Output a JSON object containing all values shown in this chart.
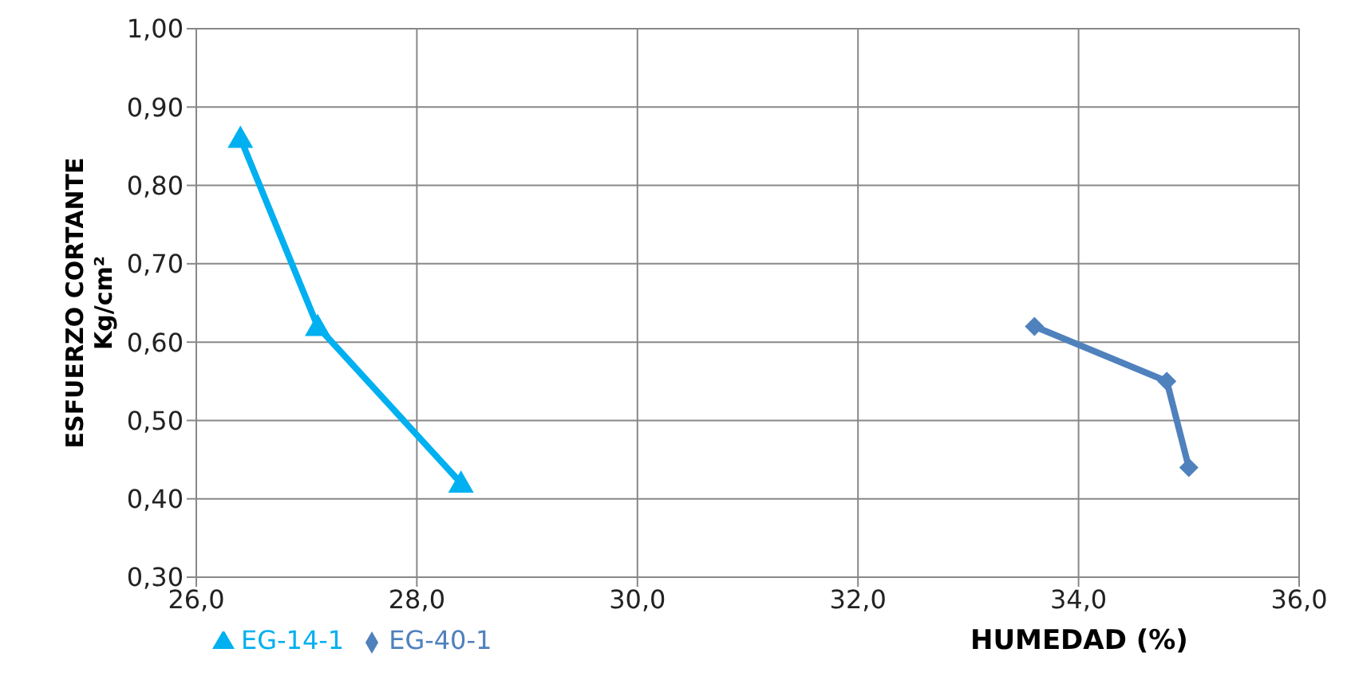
{
  "chart_data": {
    "type": "line",
    "xlabel": "HUMEDAD (%)",
    "ylabel": "ESFUERZO CORTANTE\nKg/cm²",
    "xlim": [
      26,
      36
    ],
    "xticks": [
      {
        "value": 26,
        "label": "26,0"
      },
      {
        "value": 28,
        "label": "28,0"
      },
      {
        "value": 30,
        "label": "30,0"
      },
      {
        "value": 32,
        "label": "32,0"
      },
      {
        "value": 34,
        "label": "34,0"
      },
      {
        "value": 36,
        "label": "36,0"
      }
    ],
    "ylim": [
      0.3,
      1
    ],
    "yticks": [
      {
        "value": 0.3,
        "label": "0,30"
      },
      {
        "value": 0.4,
        "label": "0,40"
      },
      {
        "value": 0.5,
        "label": "0,50"
      },
      {
        "value": 0.6,
        "label": "0,60"
      },
      {
        "value": 0.7,
        "label": "0,70"
      },
      {
        "value": 0.8,
        "label": "0,80"
      },
      {
        "value": 0.9,
        "label": "0,90"
      },
      {
        "value": 1,
        "label": "1,00"
      }
    ],
    "grid": true,
    "legend": "bottom left",
    "series": [
      {
        "name": "EG-14-1",
        "color": "#00b0f0",
        "marker": "triangle",
        "x": [
          26.4,
          27.1,
          28.4
        ],
        "values": [
          0.86,
          0.62,
          0.42
        ]
      },
      {
        "name": "EG-40-1",
        "color": "#4f81bd",
        "marker": "diamond",
        "x": [
          33.6,
          34.8,
          35.0
        ],
        "values": [
          0.62,
          0.55,
          0.44
        ]
      }
    ]
  }
}
